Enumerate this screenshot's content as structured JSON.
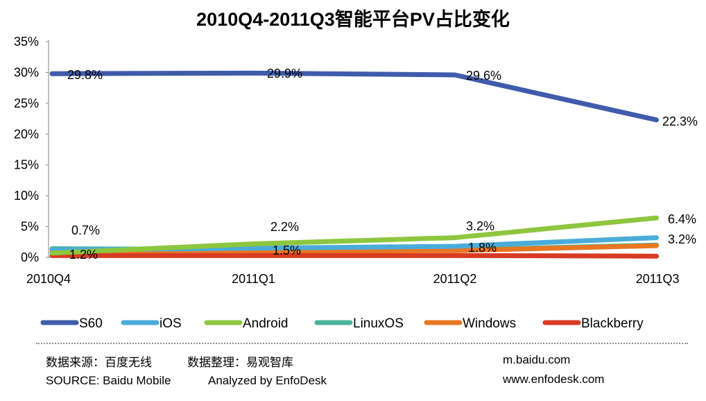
{
  "chart_data": {
    "type": "line",
    "title": "2010Q4-2011Q3智能平台PV占比变化",
    "xlabel": "",
    "ylabel": "",
    "categories": [
      "2010Q4",
      "2011Q1",
      "2011Q2",
      "2011Q3"
    ],
    "y_ticks": [
      "0%",
      "5%",
      "10%",
      "15%",
      "20%",
      "25%",
      "30%",
      "35%"
    ],
    "ylim": [
      0,
      35
    ],
    "grid": false,
    "legend_position": "bottom",
    "series": [
      {
        "name": "S60",
        "color": "#3f5bab",
        "values": [
          29.8,
          29.9,
          29.6,
          22.3
        ]
      },
      {
        "name": "iOS",
        "color": "#4bacd9",
        "values": [
          1.2,
          1.5,
          1.8,
          3.2
        ]
      },
      {
        "name": "Android",
        "color": "#8dc63f",
        "values": [
          0.7,
          2.2,
          3.2,
          6.4
        ]
      },
      {
        "name": "LinuxOS",
        "color": "#4ab39a",
        "values": [
          1.4,
          1.3,
          1.2,
          2.0
        ]
      },
      {
        "name": "Windows",
        "color": "#e87722",
        "values": [
          0.9,
          1.0,
          1.1,
          1.9
        ]
      },
      {
        "name": "Blackberry",
        "color": "#d83b24",
        "values": [
          0.3,
          0.3,
          0.3,
          0.2
        ]
      }
    ],
    "data_labels": [
      {
        "series": "S60",
        "point": 0,
        "text": "29.8%"
      },
      {
        "series": "S60",
        "point": 1,
        "text": "29.9%"
      },
      {
        "series": "S60",
        "point": 2,
        "text": "29.6%"
      },
      {
        "series": "S60",
        "point": 3,
        "text": "22.3%"
      },
      {
        "series": "Android",
        "point": 0,
        "text": "0.7%"
      },
      {
        "series": "Android",
        "point": 1,
        "text": "2.2%"
      },
      {
        "series": "Android",
        "point": 2,
        "text": "3.2%"
      },
      {
        "series": "Android",
        "point": 3,
        "text": "6.4%"
      },
      {
        "series": "iOS",
        "point": 0,
        "text": "1.2%"
      },
      {
        "series": "iOS",
        "point": 1,
        "text": "1.5%"
      },
      {
        "series": "iOS",
        "point": 2,
        "text": "1.8%"
      },
      {
        "series": "iOS",
        "point": 3,
        "text": "3.2%"
      }
    ]
  },
  "footer": {
    "source_cn": "数据来源：百度无线",
    "analysis_cn": "数据整理：易观智库",
    "source_en": "SOURCE: Baidu Mobile",
    "analysis_en": "Analyzed by EnfoDesk",
    "url_1": "m.baidu.com",
    "url_2": "www.enfodesk.com"
  }
}
